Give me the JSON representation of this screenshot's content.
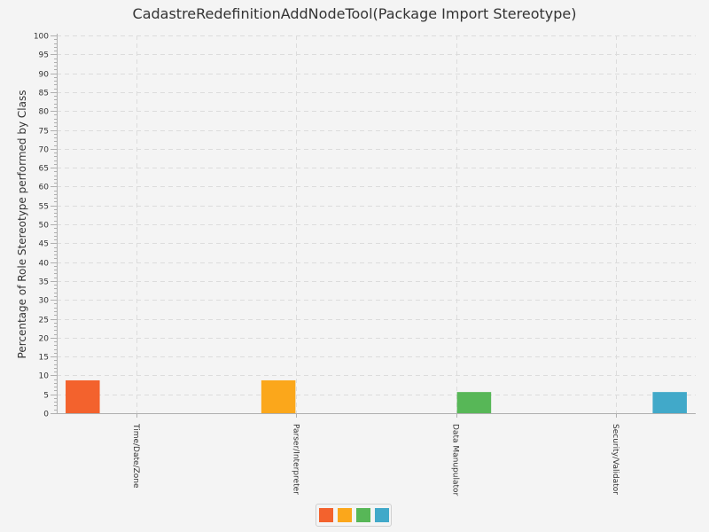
{
  "chart_data": {
    "type": "bar",
    "title": "CadastreRedefinitionAddNodeTool(Package Import Stereotype)",
    "xlabel": "",
    "ylabel": "Percentage of Role Stereotype performed by Class",
    "ylim": [
      0,
      100
    ],
    "yticks": [
      "0",
      "5",
      "10",
      "15",
      "20",
      "25",
      "30",
      "35",
      "40",
      "45",
      "50",
      "55",
      "60",
      "65",
      "70",
      "75",
      "80",
      "85",
      "90",
      "95",
      "100"
    ],
    "grid": true,
    "legend_position": "bottom",
    "categories": [
      "Time/Date/Zone",
      "Parser/Interpreter",
      "Data Manupulator",
      "Security/Validator"
    ],
    "series": [
      {
        "color": "#f3622d",
        "values": [
          8.7,
          0,
          0,
          0
        ]
      },
      {
        "color": "#fba71b",
        "values": [
          0,
          8.7,
          0,
          0
        ]
      },
      {
        "color": "#57b757",
        "values": [
          0,
          0,
          5.6,
          0
        ]
      },
      {
        "color": "#41a9c9",
        "values": [
          0,
          0,
          0,
          5.6
        ]
      }
    ]
  }
}
